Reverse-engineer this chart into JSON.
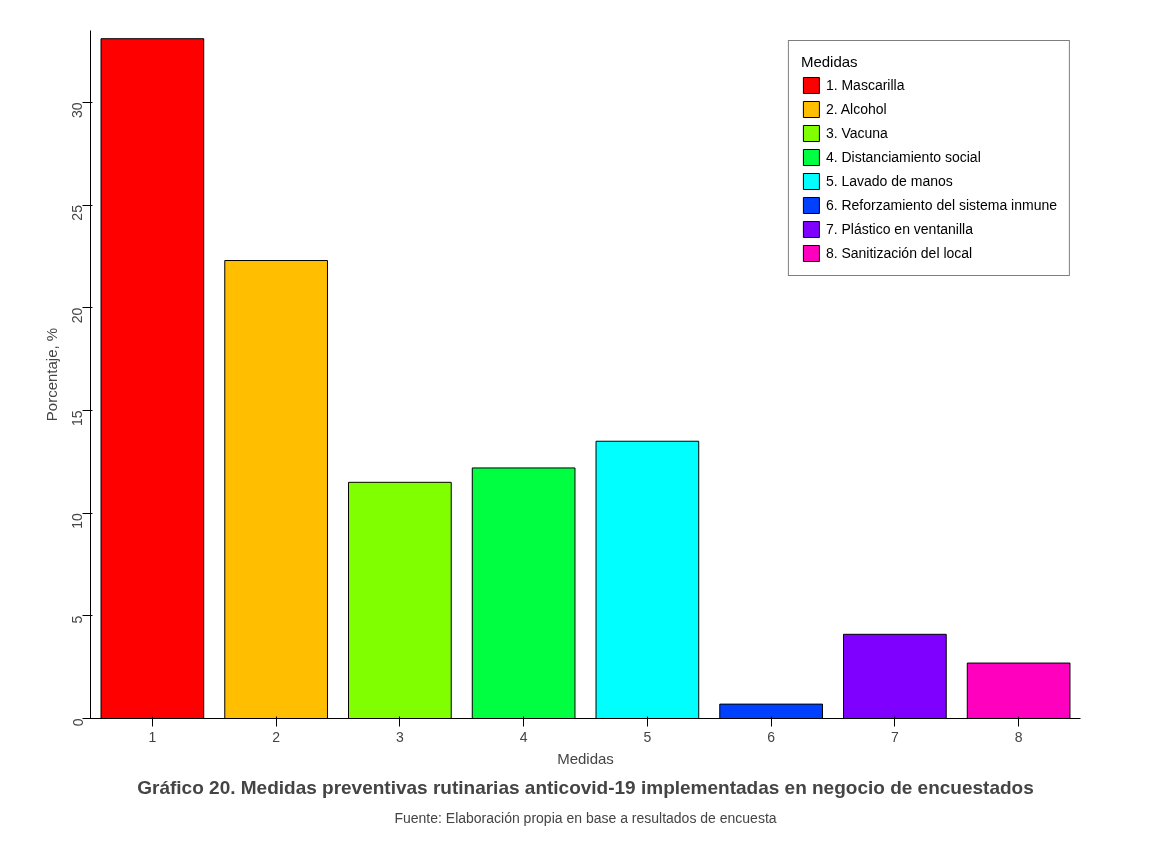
{
  "chart_data": {
    "type": "bar",
    "title": "Gráfico 20. Medidas preventivas rutinarias anticovid-19 implementadas en negocio de encuestados",
    "xlabel": "Medidas",
    "ylabel": "Porcentaje, %",
    "legend_title": "Medidas",
    "annotations": [
      "Fuente: Elaboración propia en base a resultados de encuesta"
    ],
    "categories": [
      "1",
      "2",
      "3",
      "4",
      "5",
      "6",
      "7",
      "8"
    ],
    "series": [
      {
        "name": "1. Mascarilla",
        "color": "#ff0000",
        "values": [
          33.1,
          null,
          null,
          null,
          null,
          null,
          null,
          null
        ]
      },
      {
        "name": "2. Alcohol",
        "color": "#ffbf00",
        "values": [
          null,
          22.3,
          null,
          null,
          null,
          null,
          null,
          null
        ]
      },
      {
        "name": "3. Vacuna",
        "color": "#80ff00",
        "values": [
          null,
          null,
          11.5,
          null,
          null,
          null,
          null,
          null
        ]
      },
      {
        "name": "4. Distanciamiento social",
        "color": "#00ff40",
        "values": [
          null,
          null,
          null,
          12.2,
          null,
          null,
          null,
          null
        ]
      },
      {
        "name": "5. Lavado de manos",
        "color": "#00ffff",
        "values": [
          null,
          null,
          null,
          null,
          13.5,
          null,
          null,
          null
        ]
      },
      {
        "name": "6. Reforzamiento del sistema inmune",
        "color": "#0040ff",
        "values": [
          null,
          null,
          null,
          null,
          null,
          0.7,
          null,
          null
        ]
      },
      {
        "name": "7. Plástico en ventanilla",
        "color": "#8000ff",
        "values": [
          null,
          null,
          null,
          null,
          null,
          null,
          4.1,
          null
        ]
      },
      {
        "name": "8. Sanitización del local",
        "color": "#ff00bf",
        "values": [
          null,
          null,
          null,
          null,
          null,
          null,
          null,
          2.7
        ]
      }
    ],
    "ylim": [
      0,
      33.5
    ],
    "yticks": [
      0,
      5,
      10,
      15,
      20,
      25,
      30
    ],
    "grid": false,
    "legend": "top right"
  }
}
